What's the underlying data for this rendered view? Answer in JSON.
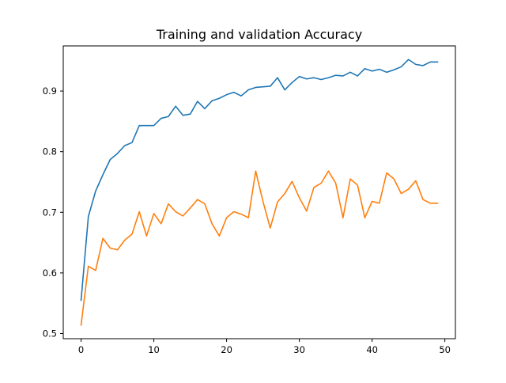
{
  "chart_data": {
    "type": "line",
    "title": "Training and validation Accuracy",
    "xlabel": "",
    "ylabel": "",
    "xlim": [
      -2.45,
      51.45
    ],
    "ylim": [
      0.4915,
      0.9745
    ],
    "x_ticks": [
      0,
      10,
      20,
      30,
      40,
      50
    ],
    "y_ticks": [
      0.5,
      0.6,
      0.7,
      0.8,
      0.9
    ],
    "x_tick_labels": [
      "0",
      "10",
      "20",
      "30",
      "40",
      "50"
    ],
    "y_tick_labels": [
      "0.5",
      "0.6",
      "0.7",
      "0.8",
      "0.9"
    ],
    "grid": false,
    "legend": null,
    "x": [
      0,
      1,
      2,
      3,
      4,
      5,
      6,
      7,
      8,
      9,
      10,
      11,
      12,
      13,
      14,
      15,
      16,
      17,
      18,
      19,
      20,
      21,
      22,
      23,
      24,
      25,
      26,
      27,
      28,
      29,
      30,
      31,
      32,
      33,
      34,
      35,
      36,
      37,
      38,
      39,
      40,
      41,
      42,
      43,
      44,
      45,
      46,
      47,
      48,
      49
    ],
    "series": [
      {
        "color": "#1f77b4",
        "values": [
          0.555,
          0.693,
          0.735,
          0.762,
          0.787,
          0.797,
          0.81,
          0.815,
          0.843,
          0.843,
          0.843,
          0.855,
          0.858,
          0.875,
          0.86,
          0.862,
          0.883,
          0.871,
          0.884,
          0.888,
          0.894,
          0.898,
          0.892,
          0.902,
          0.906,
          0.907,
          0.908,
          0.922,
          0.902,
          0.914,
          0.924,
          0.92,
          0.922,
          0.919,
          0.922,
          0.926,
          0.925,
          0.931,
          0.925,
          0.937,
          0.933,
          0.936,
          0.931,
          0.935,
          0.94,
          0.952,
          0.944,
          0.942,
          0.948,
          0.948
        ]
      },
      {
        "color": "#ff7f0e",
        "values": [
          0.514,
          0.611,
          0.604,
          0.657,
          0.641,
          0.638,
          0.654,
          0.664,
          0.701,
          0.661,
          0.698,
          0.681,
          0.714,
          0.701,
          0.694,
          0.707,
          0.721,
          0.714,
          0.681,
          0.661,
          0.691,
          0.701,
          0.697,
          0.691,
          0.768,
          0.718,
          0.674,
          0.717,
          0.731,
          0.751,
          0.724,
          0.702,
          0.741,
          0.748,
          0.768,
          0.748,
          0.691,
          0.755,
          0.745,
          0.691,
          0.718,
          0.715,
          0.765,
          0.755,
          0.731,
          0.738,
          0.752,
          0.721,
          0.715,
          0.715
        ]
      }
    ]
  }
}
